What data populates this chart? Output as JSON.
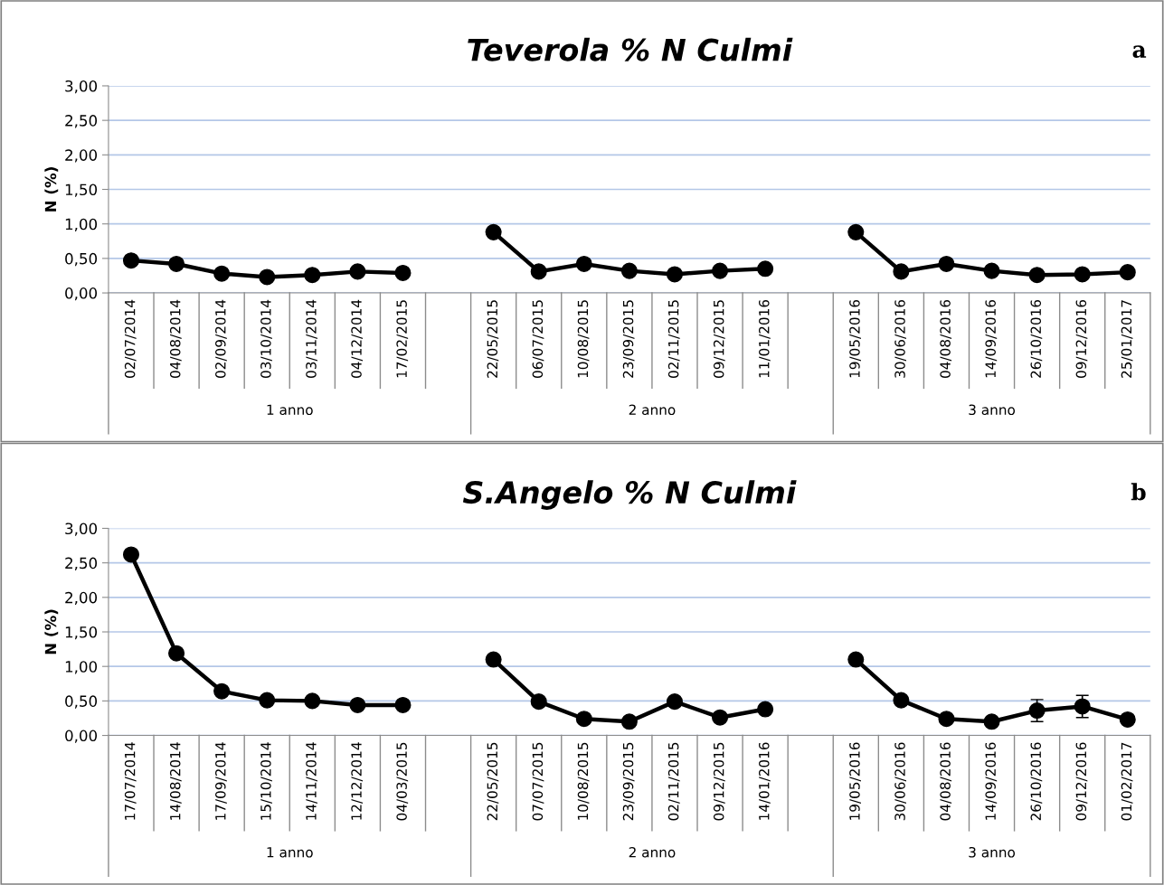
{
  "chart_data": [
    {
      "type": "line",
      "title": "Teverola % N Culmi",
      "ylabel": "N (%)",
      "categories": [
        "02/07/2014",
        "04/08/2014",
        "02/09/2014",
        "03/10/2014",
        "03/11/2014",
        "04/12/2014",
        "17/02/2015",
        null,
        "22/05/2015",
        "06/07/2015",
        "10/08/2015",
        "23/09/2015",
        "02/11/2015",
        "09/12/2015",
        "11/01/2016",
        null,
        "19/05/2016",
        "30/06/2016",
        "04/08/2016",
        "14/09/2016",
        "26/10/2016",
        "09/12/2016",
        "25/01/2017"
      ],
      "series": [
        {
          "color": "#000000",
          "values": [
            0.47,
            0.42,
            0.28,
            0.23,
            0.26,
            0.31,
            0.29,
            null,
            0.88,
            0.31,
            0.42,
            0.32,
            0.27,
            0.32,
            0.35,
            null,
            0.88,
            0.31,
            0.42,
            0.32,
            0.26,
            0.27,
            0.3
          ]
        }
      ],
      "ylim": [
        0,
        3
      ],
      "yticks": [
        {
          "value": 0,
          "label": "0,00"
        },
        {
          "value": 0.5,
          "label": "0,50"
        },
        {
          "value": 1,
          "label": "1,00"
        },
        {
          "value": 1.5,
          "label": "1,50"
        },
        {
          "value": 2,
          "label": "2,00"
        },
        {
          "value": 2.5,
          "label": "2,50"
        },
        {
          "value": 3,
          "label": "3,00"
        }
      ],
      "grid": "y",
      "marker": "circle",
      "line_style": "solid",
      "annotations": [
        "1 anno",
        "2 anno",
        "3 anno",
        "a"
      ]
    },
    {
      "type": "line",
      "title": "S.Angelo % N Culmi",
      "ylabel": "N (%)",
      "categories": [
        "17/07/2014",
        "14/08/2014",
        "17/09/2014",
        "15/10/2014",
        "14/11/2014",
        "12/12/2014",
        "04/03/2015",
        null,
        "22/05/2015",
        "07/07/2015",
        "10/08/2015",
        "23/09/2015",
        "02/11/2015",
        "09/12/2015",
        "14/01/2016",
        null,
        "19/05/2016",
        "30/06/2016",
        "04/08/2016",
        "14/09/2016",
        "26/10/2016",
        "09/12/2016",
        "01/02/2017"
      ],
      "series": [
        {
          "color": "#000000",
          "values": [
            2.62,
            1.19,
            0.64,
            0.51,
            0.5,
            0.44,
            0.44,
            null,
            1.1,
            0.49,
            0.24,
            0.2,
            0.49,
            0.26,
            0.38,
            null,
            1.1,
            0.51,
            0.24,
            0.2,
            0.36,
            0.42,
            0.23
          ],
          "errors": [
            null,
            null,
            null,
            null,
            null,
            null,
            null,
            null,
            null,
            null,
            null,
            null,
            null,
            null,
            null,
            null,
            null,
            null,
            null,
            null,
            0.16,
            0.16,
            null
          ]
        }
      ],
      "ylim": [
        0,
        3
      ],
      "yticks": [
        {
          "value": 0,
          "label": "0,00"
        },
        {
          "value": 0.5,
          "label": "0,50"
        },
        {
          "value": 1,
          "label": "1,00"
        },
        {
          "value": 1.5,
          "label": "1,50"
        },
        {
          "value": 2,
          "label": "2,00"
        },
        {
          "value": 2.5,
          "label": "2,50"
        },
        {
          "value": 3,
          "label": "3,00"
        }
      ],
      "grid": "y",
      "marker": "circle",
      "line_style": "solid",
      "annotations": [
        "1 anno",
        "2 anno",
        "3 anno",
        "b"
      ]
    }
  ]
}
